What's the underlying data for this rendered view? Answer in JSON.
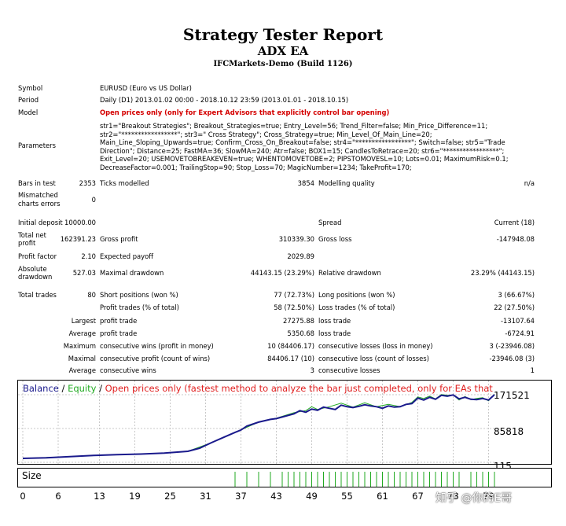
{
  "header": {
    "title": "Strategy Tester Report",
    "ea_name": "ADX EA",
    "server": "IFCMarkets-Demo (Build 1126)"
  },
  "settings": {
    "symbol_label": "Symbol",
    "symbol_value": "EURUSD (Euro vs US Dollar)",
    "period_label": "Period",
    "period_value": "Daily (D1) 2013.01.02 00:00 - 2018.10.12 23:59 (2013.01.01 - 2018.10.15)",
    "model_label": "Model",
    "model_value": "Open prices only (only for Expert Advisors that explicitly control bar opening)",
    "parameters_label": "Parameters",
    "parameters_value": "str1=\"Breakout Strategies\"; Breakout_Strategies=true; Entry_Level=56; Trend_Filter=false; Min_Price_Difference=11; str2=\"*****************\"; str3=\" Cross Strategy\"; Cross_Strategy=true; Min_Level_Of_Main_Line=20; Main_Line_Sloping_Upwards=true; Confirm_Cross_On_Breakout=false; str4=\"*****************\"; Switch=false; str5=\"Trade Direction\"; Distance=25; FastMA=36; SlowMA=240; Atr=false; BOX1=15; CandlesToRetrace=20; str6=\"*****************\"; Exit_Level=20; USEMOVETOBREAKEVEN=true; WHENTOMOVETOBE=2; PIPSTOMOVESL=10; Lots=0.01; MaximumRisk=0.1; DecreaseFactor=0.001; TrailingStop=90; Stop_Loss=70; MagicNumber=1234; TakeProfit=170;"
  },
  "quality": {
    "bars_label": "Bars in test",
    "bars_value": "2353",
    "ticks_label": "Ticks modelled",
    "ticks_value": "3854",
    "mq_label": "Modelling quality",
    "mq_value": "n/a",
    "mismatch_label_1": "Mismatched",
    "mismatch_label_2": "charts errors",
    "mismatch_value": "0"
  },
  "results": {
    "initial_deposit_label": "Initial deposit",
    "initial_deposit_value": "10000.00",
    "spread_label": "Spread",
    "spread_value": "Current (18)",
    "total_net_label_1": "Total net",
    "total_net_label_2": "profit",
    "total_net_value": "162391.23",
    "gross_profit_label": "Gross profit",
    "gross_profit_value": "310339.30",
    "gross_loss_label": "Gross loss",
    "gross_loss_value": "-147948.08",
    "profit_factor_label": "Profit factor",
    "profit_factor_value": "2.10",
    "expected_payoff_label": "Expected payoff",
    "expected_payoff_value": "2029.89",
    "abs_dd_label_1": "Absolute",
    "abs_dd_label_2": "drawdown",
    "abs_dd_value": "527.03",
    "max_dd_label": "Maximal drawdown",
    "max_dd_value": "44143.15 (23.29%)",
    "rel_dd_label": "Relative drawdown",
    "rel_dd_value": "23.29% (44143.15)",
    "total_trades_label": "Total trades",
    "total_trades_value": "80",
    "short_label": "Short positions (won %)",
    "short_value": "77 (72.73%)",
    "long_label": "Long positions (won %)",
    "long_value": "3 (66.67%)",
    "profit_trades_label": "Profit trades (% of total)",
    "profit_trades_value": "58 (72.50%)",
    "loss_trades_label": "Loss trades (% of total)",
    "loss_trades_value": "22 (27.50%)",
    "largest_label": "Largest",
    "largest_profit_label": "profit trade",
    "largest_profit_value": "27275.88",
    "largest_loss_label": "loss trade",
    "largest_loss_value": "-13107.64",
    "average_label": "Average",
    "average_profit_label": "profit trade",
    "average_profit_value": "5350.68",
    "average_loss_label": "loss trade",
    "average_loss_value": "-6724.91",
    "maximum_label": "Maximum",
    "max_cons_wins_label": "consecutive wins (profit in money)",
    "max_cons_wins_value": "10 (84406.17)",
    "max_cons_losses_label": "consecutive losses (loss in money)",
    "max_cons_losses_value": "3 (-23946.08)",
    "maximal_label": "Maximal",
    "maximal_cons_profit_label": "consecutive profit (count of wins)",
    "maximal_cons_profit_value": "84406.17 (10)",
    "maximal_cons_loss_label": "consecutive loss (count of losses)",
    "maximal_cons_loss_value": "-23946.08 (3)",
    "average2_label": "Average",
    "avg_cons_wins_label": "consecutive wins",
    "avg_cons_wins_value": "3",
    "avg_cons_losses_label": "consecutive losses",
    "avg_cons_losses_value": "1"
  },
  "chart_legend": {
    "balance": "Balance",
    "sep1": " / ",
    "equity": "Equity",
    "sep2": " / ",
    "note": "Open prices only (fastest method to analyze the bar just completed, only for EAs that"
  },
  "colors": {
    "balance": "#1a1a8c",
    "equity": "#22aa22",
    "note": "#e02020",
    "size_bars": "#22aa22"
  },
  "chart_data": {
    "type": "line",
    "x_ticks": [
      "0",
      "6",
      "13",
      "19",
      "25",
      "31",
      "37",
      "43",
      "49",
      "55",
      "61",
      "67",
      "73",
      "79"
    ],
    "xlim": [
      0,
      80
    ],
    "y_ticks": [
      "171521",
      "85818",
      "115"
    ],
    "ylim": [
      115,
      171521
    ],
    "grid": true,
    "series": [
      {
        "name": "Balance",
        "x": [
          0,
          4,
          8,
          12,
          16,
          20,
          24,
          28,
          30,
          32,
          34,
          36,
          37,
          38,
          40,
          42,
          43,
          44,
          46,
          47,
          48,
          49,
          50,
          51,
          52,
          53,
          54,
          55,
          56,
          57,
          58,
          59,
          60,
          61,
          62,
          63,
          64,
          65,
          66,
          67,
          68,
          69,
          70,
          71,
          72,
          73,
          74,
          75,
          76,
          77,
          78,
          79,
          80
        ],
        "values": [
          10000,
          11500,
          14500,
          17500,
          19500,
          21000,
          23500,
          28000,
          36000,
          50000,
          63000,
          76000,
          82000,
          92000,
          102000,
          109000,
          111000,
          115000,
          123000,
          131000,
          127000,
          135000,
          132000,
          140000,
          137000,
          134000,
          145000,
          141000,
          139000,
          142000,
          146000,
          143000,
          141000,
          137000,
          143000,
          140000,
          141000,
          147000,
          149000,
          163000,
          158000,
          165000,
          160000,
          170000,
          168000,
          171000,
          161000,
          165000,
          160000,
          159000,
          162000,
          158000,
          171521
        ]
      },
      {
        "name": "Equity",
        "x": [
          0,
          8,
          16,
          24,
          28,
          32,
          36,
          40,
          43,
          46,
          48,
          49,
          50,
          52,
          54,
          56,
          58,
          60,
          62,
          64,
          66,
          67,
          68,
          69,
          70,
          71,
          72,
          73,
          74,
          75,
          76,
          77,
          78,
          79,
          80
        ],
        "values": [
          10000,
          14500,
          19500,
          23500,
          28000,
          50000,
          76000,
          102000,
          112000,
          126000,
          131000,
          141000,
          134000,
          141000,
          150000,
          140000,
          151000,
          141000,
          147000,
          141000,
          152000,
          166000,
          162000,
          168000,
          161000,
          172000,
          170000,
          171000,
          158000,
          167000,
          159000,
          162000,
          164000,
          156000,
          173000
        ]
      }
    ],
    "size_label": "Size",
    "size_bar_x": [
      36,
      38,
      40,
      42,
      44,
      45,
      46,
      47,
      48,
      49,
      50,
      51,
      52,
      53,
      54,
      55,
      56,
      57,
      58,
      59,
      60,
      61,
      62,
      63,
      64,
      65,
      66,
      67,
      68,
      69,
      70,
      71,
      72,
      73,
      74,
      76,
      77,
      78,
      79,
      80
    ]
  },
  "watermark": "知乎 @你的E哥"
}
